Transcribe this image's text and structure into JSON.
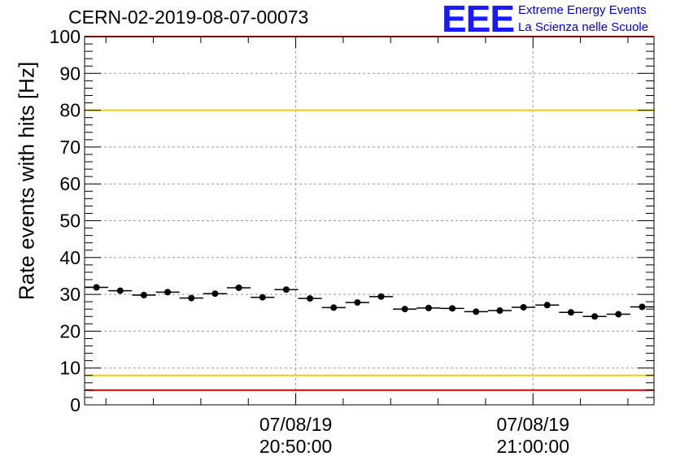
{
  "title": "CERN-02-2019-08-07-00073",
  "logo": {
    "text": "EEE",
    "line1": "Extreme Energy Events",
    "line2": "La Scienza nelle Scuole"
  },
  "colors": {
    "limit_red": "#ff0000",
    "limit_yellow": "#f0d000",
    "logo_blue": "#1a1aff",
    "marker": "#000000",
    "grid": "#999999"
  },
  "chart_data": {
    "type": "scatter",
    "title": "CERN-02-2019-08-07-00073",
    "xlabel": "",
    "ylabel": "Rate events with hits [Hz]",
    "ylim": [
      0,
      100
    ],
    "yticks": [
      0,
      10,
      20,
      30,
      40,
      50,
      60,
      70,
      80,
      90,
      100
    ],
    "grid": true,
    "xticks": [
      {
        "t": "20:50:00",
        "date": "07/08/19",
        "time": "20:50:00"
      },
      {
        "t": "21:00:00",
        "date": "07/08/19",
        "time": "21:00:00"
      }
    ],
    "xrange": [
      "20:41:06",
      "21:05:06"
    ],
    "series": [
      {
        "values_time": [
          "20:41:36",
          "20:42:36",
          "20:43:36",
          "20:44:36",
          "20:45:36",
          "20:46:36",
          "20:47:36",
          "20:48:36",
          "20:49:36",
          "20:50:36",
          "20:51:36",
          "20:52:36",
          "20:53:36",
          "20:54:36",
          "20:55:36",
          "20:56:36",
          "20:57:36",
          "20:58:36",
          "20:59:36",
          "21:00:36",
          "21:01:36",
          "21:02:36",
          "21:03:36",
          "21:04:36"
        ],
        "y": [
          31.9,
          31.0,
          29.8,
          30.6,
          29.0,
          30.2,
          31.8,
          29.2,
          31.3,
          28.9,
          26.4,
          27.8,
          29.4,
          26.0,
          26.3,
          26.2,
          25.3,
          25.6,
          26.5,
          27.1,
          25.1,
          24.0,
          24.6,
          26.6
        ]
      }
    ],
    "horizontal_lines": [
      {
        "y": 100,
        "color": "red"
      },
      {
        "y": 80,
        "color": "yellow"
      },
      {
        "y": 8,
        "color": "yellow"
      },
      {
        "y": 4,
        "color": "red"
      }
    ]
  }
}
